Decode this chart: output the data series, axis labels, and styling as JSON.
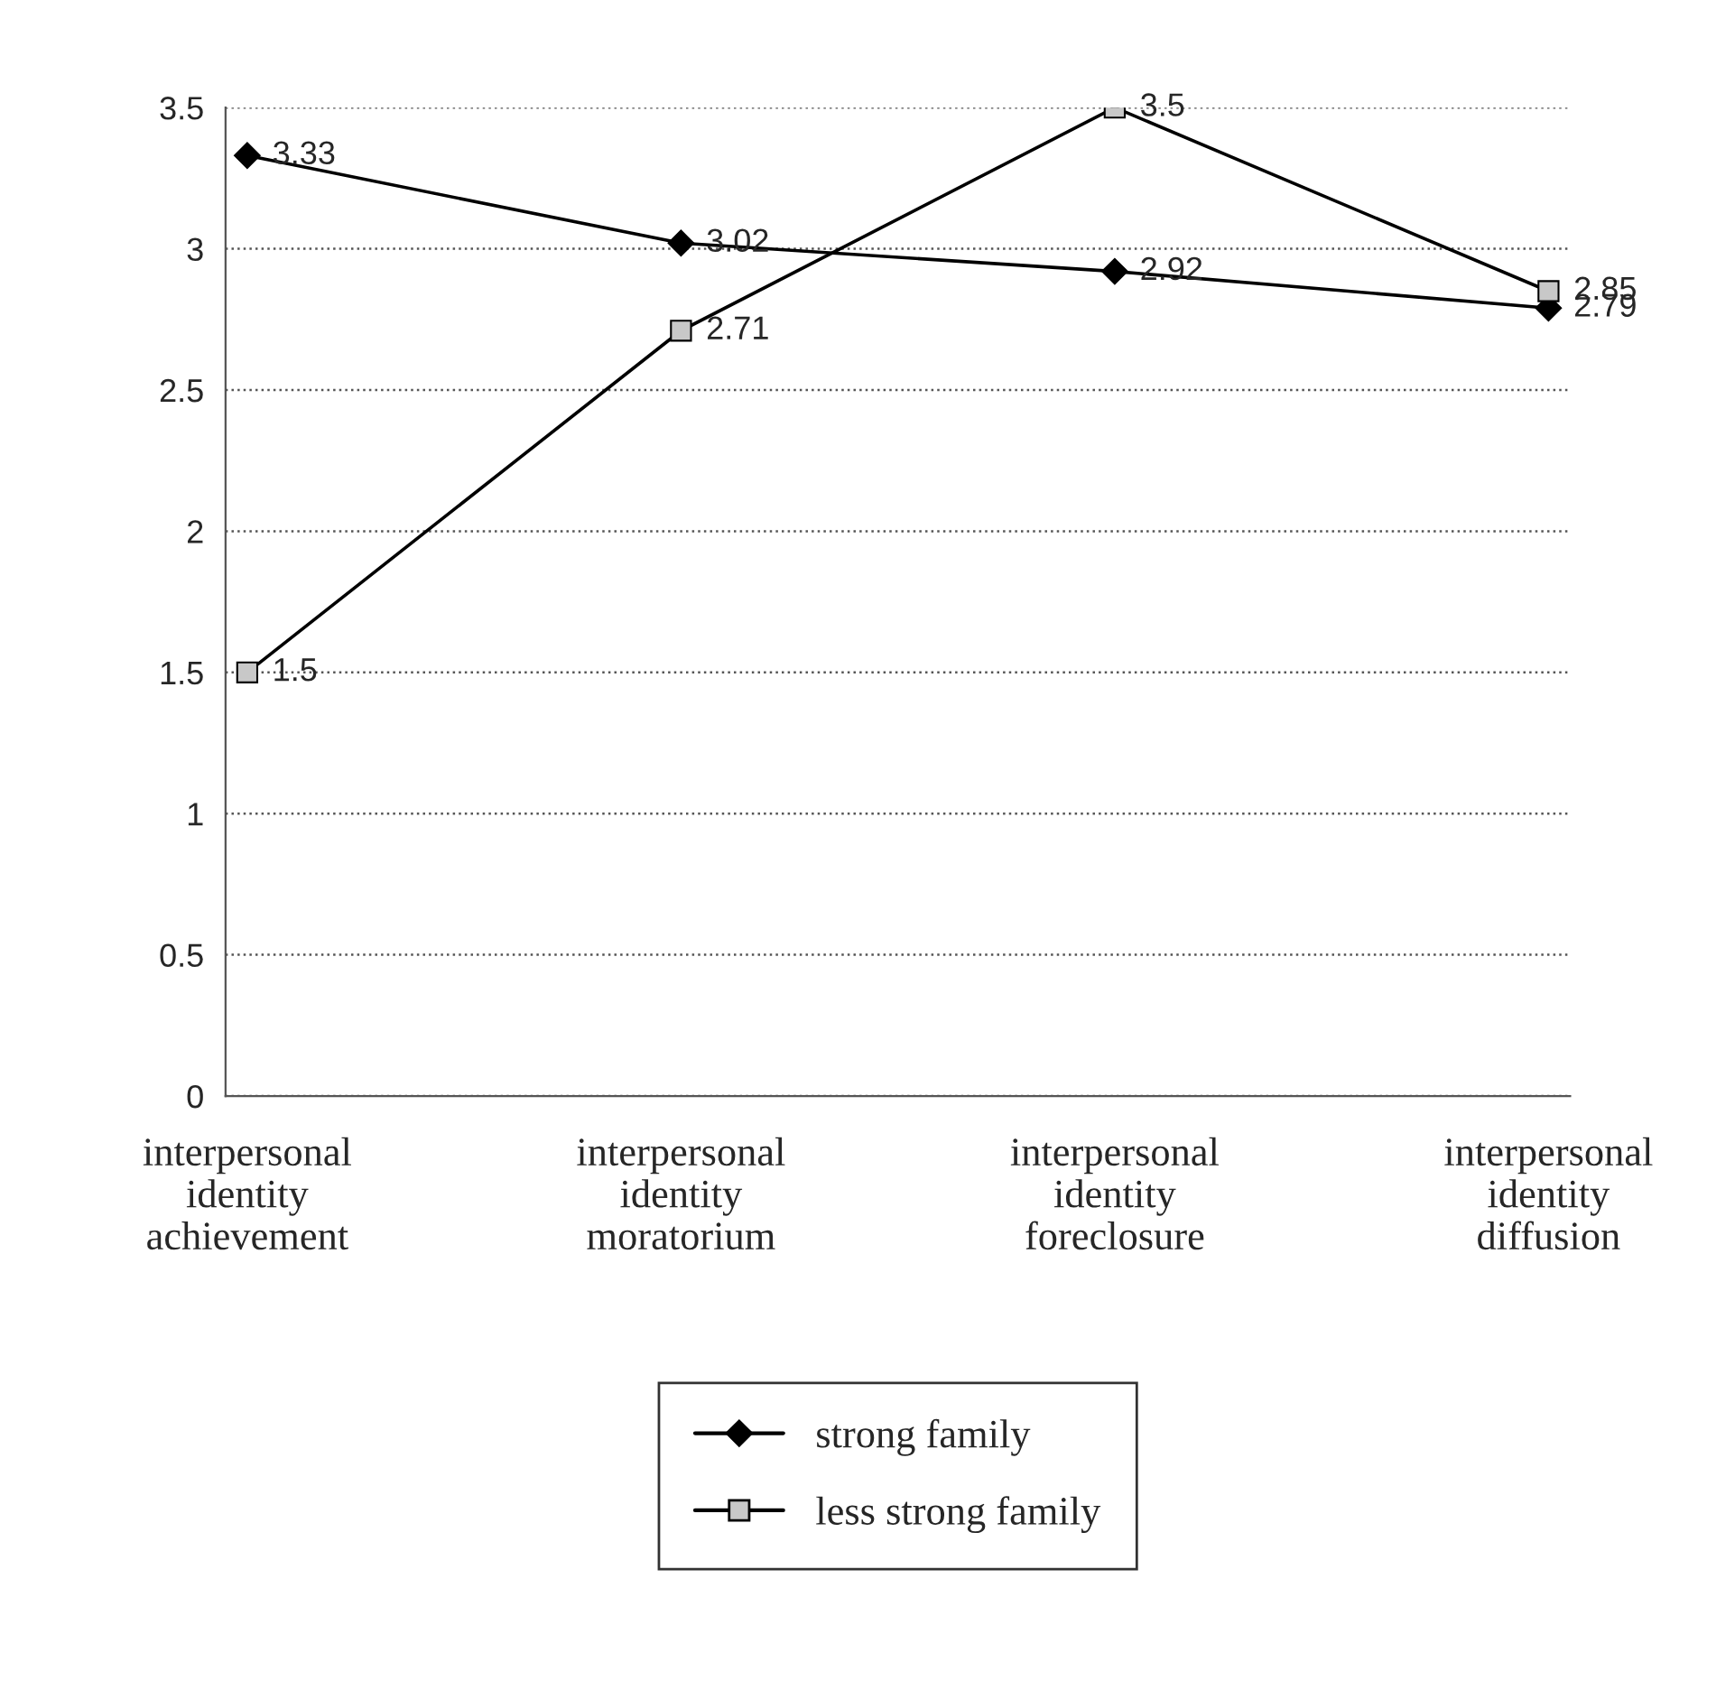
{
  "chart_data": {
    "type": "line",
    "categories": [
      "interpersonal identity achievement",
      "interpersonal identity moratorium",
      "interpersonal identity foreclosure",
      "interpersonal identity diffusion"
    ],
    "series": [
      {
        "name": "strong family",
        "color": "#000000",
        "marker": "diamond",
        "values": [
          3.33,
          3.02,
          2.92,
          2.79
        ]
      },
      {
        "name": "less strong family",
        "color": "#000000",
        "marker": "square",
        "values": [
          1.5,
          2.71,
          3.5,
          2.85
        ]
      }
    ],
    "ylim": [
      0,
      3.5
    ],
    "yticks": [
      0,
      0.5,
      1,
      1.5,
      2,
      2.5,
      3,
      3.5
    ],
    "grid": "y",
    "legend": "bottom",
    "data_labels": true,
    "line_style": "solid"
  }
}
